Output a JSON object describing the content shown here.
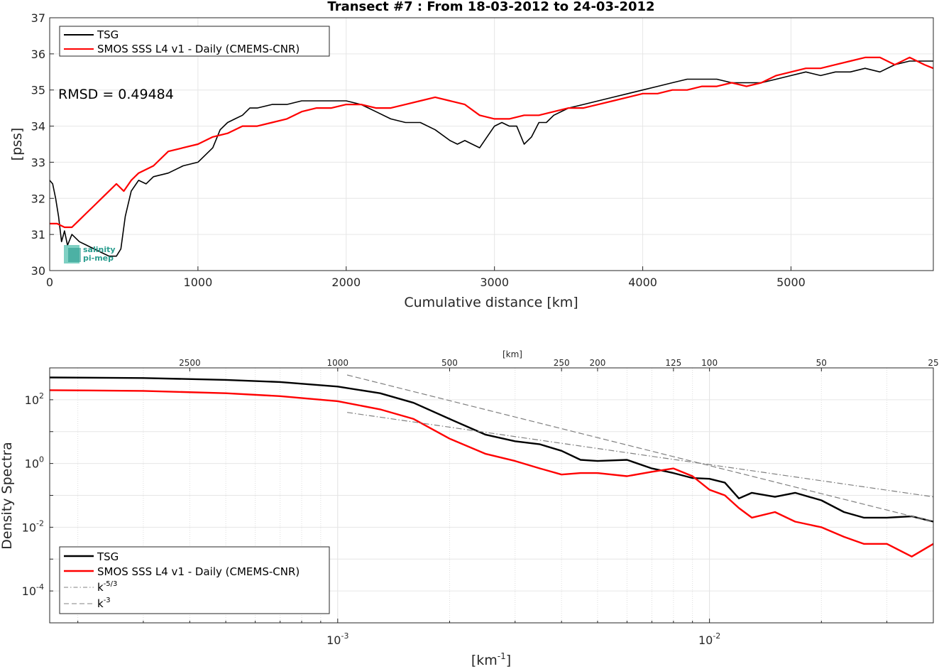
{
  "chart_data": [
    {
      "type": "line",
      "title": "Transect #7 : From 18-03-2012 to 24-03-2012",
      "xlabel": "Cumulative distance [km]",
      "ylabel": "[pss]",
      "xlim": [
        0,
        5960
      ],
      "ylim": [
        30,
        37
      ],
      "xticks": [
        0,
        1000,
        2000,
        3000,
        4000,
        5000
      ],
      "yticks": [
        30,
        31,
        32,
        33,
        34,
        35,
        36,
        37
      ],
      "grid": true,
      "legend_position": "top-left",
      "annotation": "RMSD = 0.49484",
      "logo_text": [
        "salinity",
        "pi-mep"
      ],
      "series": [
        {
          "name": "TSG",
          "color": "#000000",
          "x": [
            0,
            20,
            40,
            60,
            80,
            100,
            120,
            150,
            200,
            250,
            300,
            350,
            400,
            450,
            480,
            510,
            550,
            600,
            650,
            700,
            800,
            900,
            1000,
            1050,
            1100,
            1150,
            1200,
            1250,
            1300,
            1350,
            1400,
            1500,
            1600,
            1700,
            1800,
            1900,
            2000,
            2100,
            2200,
            2300,
            2400,
            2500,
            2600,
            2700,
            2750,
            2800,
            2850,
            2900,
            2950,
            3000,
            3050,
            3100,
            3150,
            3200,
            3250,
            3300,
            3350,
            3400,
            3500,
            3600,
            3700,
            3800,
            3900,
            4000,
            4100,
            4200,
            4300,
            4400,
            4500,
            4600,
            4700,
            4800,
            4900,
            5000,
            5100,
            5200,
            5300,
            5400,
            5500,
            5600,
            5700,
            5800,
            5900,
            5960
          ],
          "values": [
            32.5,
            32.4,
            32.0,
            31.5,
            30.8,
            31.1,
            30.7,
            31.0,
            30.8,
            30.7,
            30.6,
            30.5,
            30.4,
            30.4,
            30.6,
            31.5,
            32.2,
            32.5,
            32.4,
            32.6,
            32.7,
            32.9,
            33.0,
            33.2,
            33.4,
            33.9,
            34.1,
            34.2,
            34.3,
            34.5,
            34.5,
            34.6,
            34.6,
            34.7,
            34.7,
            34.7,
            34.7,
            34.6,
            34.4,
            34.2,
            34.1,
            34.1,
            33.9,
            33.6,
            33.5,
            33.6,
            33.5,
            33.4,
            33.7,
            34.0,
            34.1,
            34.0,
            34.0,
            33.5,
            33.7,
            34.1,
            34.1,
            34.3,
            34.5,
            34.6,
            34.7,
            34.8,
            34.9,
            35.0,
            35.1,
            35.2,
            35.3,
            35.3,
            35.3,
            35.2,
            35.2,
            35.2,
            35.3,
            35.4,
            35.5,
            35.4,
            35.5,
            35.5,
            35.6,
            35.5,
            35.7,
            35.8,
            35.8,
            35.8
          ]
        },
        {
          "name": "SMOS SSS L4 v1 - Daily (CMEMS-CNR)",
          "color": "#ff0000",
          "x": [
            0,
            50,
            100,
            150,
            200,
            250,
            300,
            350,
            400,
            450,
            500,
            550,
            600,
            700,
            800,
            900,
            1000,
            1100,
            1200,
            1300,
            1400,
            1500,
            1600,
            1700,
            1800,
            1900,
            2000,
            2100,
            2200,
            2300,
            2400,
            2500,
            2600,
            2700,
            2800,
            2900,
            3000,
            3100,
            3200,
            3300,
            3400,
            3500,
            3600,
            3700,
            3800,
            3900,
            4000,
            4100,
            4200,
            4300,
            4400,
            4500,
            4600,
            4700,
            4800,
            4900,
            5000,
            5100,
            5200,
            5300,
            5400,
            5500,
            5600,
            5700,
            5800,
            5900,
            5960
          ],
          "values": [
            31.3,
            31.3,
            31.2,
            31.2,
            31.4,
            31.6,
            31.8,
            32.0,
            32.2,
            32.4,
            32.2,
            32.5,
            32.7,
            32.9,
            33.3,
            33.4,
            33.5,
            33.7,
            33.8,
            34.0,
            34.0,
            34.1,
            34.2,
            34.4,
            34.5,
            34.5,
            34.6,
            34.6,
            34.5,
            34.5,
            34.6,
            34.7,
            34.8,
            34.7,
            34.6,
            34.3,
            34.2,
            34.2,
            34.3,
            34.3,
            34.4,
            34.5,
            34.5,
            34.6,
            34.7,
            34.8,
            34.9,
            34.9,
            35.0,
            35.0,
            35.1,
            35.1,
            35.2,
            35.1,
            35.2,
            35.4,
            35.5,
            35.6,
            35.6,
            35.7,
            35.8,
            35.9,
            35.9,
            35.7,
            35.9,
            35.7,
            35.6
          ]
        }
      ]
    },
    {
      "type": "line",
      "title": "",
      "xlabel": "[km^-1]",
      "ylabel": "Density Spectra",
      "top_axis_label": "[km]",
      "xscale": "log",
      "yscale": "log",
      "xlim": [
        0.000168,
        0.04
      ],
      "ylim": [
        1e-05,
        1000
      ],
      "xtick_labels": [
        "10^-3",
        "10^-2"
      ],
      "ytick_labels": [
        "10^2",
        "10^0",
        "10^-2",
        "10^-4"
      ],
      "top_ticks_km": [
        2500,
        1000,
        500,
        250,
        200,
        125,
        100,
        50,
        25
      ],
      "grid": true,
      "legend_position": "bottom-left",
      "series": [
        {
          "name": "TSG",
          "color": "#000000",
          "x": [
            0.000168,
            0.0003,
            0.0005,
            0.0007,
            0.001,
            0.0013,
            0.0016,
            0.002,
            0.0025,
            0.003,
            0.0035,
            0.004,
            0.0045,
            0.005,
            0.006,
            0.007,
            0.008,
            0.009,
            0.01,
            0.011,
            0.012,
            0.013,
            0.015,
            0.017,
            0.02,
            0.023,
            0.026,
            0.03,
            0.035,
            0.04
          ],
          "values": [
            500,
            480,
            420,
            360,
            260,
            160,
            80,
            25,
            8,
            5,
            4,
            2.5,
            1.3,
            1.2,
            1.3,
            0.7,
            0.5,
            0.35,
            0.33,
            0.25,
            0.08,
            0.12,
            0.09,
            0.12,
            0.07,
            0.03,
            0.02,
            0.02,
            0.022,
            0.015
          ]
        },
        {
          "name": "SMOS SSS L4 v1 - Daily (CMEMS-CNR)",
          "color": "#ff0000",
          "x": [
            0.000168,
            0.0003,
            0.0005,
            0.0007,
            0.001,
            0.0013,
            0.0016,
            0.002,
            0.0025,
            0.003,
            0.0035,
            0.004,
            0.0045,
            0.005,
            0.006,
            0.007,
            0.008,
            0.009,
            0.01,
            0.011,
            0.012,
            0.013,
            0.015,
            0.017,
            0.02,
            0.023,
            0.026,
            0.03,
            0.035,
            0.04
          ],
          "values": [
            200,
            190,
            160,
            130,
            90,
            50,
            25,
            6,
            2,
            1.2,
            0.7,
            0.45,
            0.5,
            0.5,
            0.4,
            0.55,
            0.7,
            0.4,
            0.15,
            0.1,
            0.04,
            0.02,
            0.03,
            0.015,
            0.01,
            0.005,
            0.003,
            0.003,
            0.0012,
            0.003
          ]
        },
        {
          "name": "k^-5/3",
          "color": "#808080",
          "style": "dash-dot",
          "x": [
            0.00106,
            0.04
          ],
          "values": [
            40,
            0.09
          ]
        },
        {
          "name": "k^-3",
          "color": "#808080",
          "style": "dashed",
          "x": [
            0.00106,
            0.04
          ],
          "values": [
            600,
            0.015
          ]
        }
      ]
    }
  ]
}
